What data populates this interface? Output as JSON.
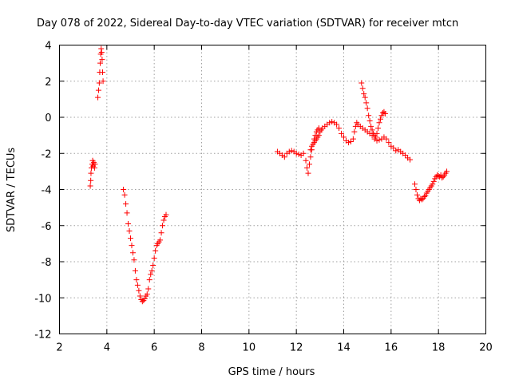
{
  "chart_data": {
    "type": "scatter",
    "title": "Day 078 of 2022, Sidereal Day-to-day VTEC variation (SDTVAR) for receiver mtcn",
    "xlabel": "GPS time / hours",
    "ylabel": "SDTVAR / TECUs",
    "xlim": [
      2,
      20
    ],
    "ylim": [
      -12,
      4
    ],
    "xticks": [
      2,
      4,
      6,
      8,
      10,
      12,
      14,
      16,
      18,
      20
    ],
    "yticks": [
      -12,
      -10,
      -8,
      -6,
      -4,
      -2,
      0,
      2,
      4
    ],
    "xtick_labels": [
      "2",
      "4",
      "6",
      "8",
      "10",
      "12",
      "14",
      "16",
      "18",
      "20"
    ],
    "ytick_labels": [
      "-12",
      "-10",
      "-8",
      "-6",
      "-4",
      "-2",
      "0",
      "2",
      "4"
    ],
    "grid": true,
    "marker": "plus",
    "color": "#ff0000",
    "series": [
      {
        "name": "segment-1",
        "points": [
          [
            3.3,
            -3.8
          ],
          [
            3.32,
            -3.5
          ],
          [
            3.33,
            -3.1
          ],
          [
            3.35,
            -2.8
          ],
          [
            3.38,
            -2.6
          ],
          [
            3.4,
            -2.4
          ],
          [
            3.42,
            -2.7
          ],
          [
            3.45,
            -2.5
          ],
          [
            3.48,
            -2.8
          ],
          [
            3.5,
            -2.6
          ]
        ]
      },
      {
        "name": "segment-2",
        "points": [
          [
            3.62,
            1.1
          ],
          [
            3.65,
            1.5
          ],
          [
            3.68,
            1.9
          ],
          [
            3.7,
            2.5
          ],
          [
            3.72,
            3.0
          ],
          [
            3.74,
            3.5
          ],
          [
            3.76,
            3.8
          ],
          [
            3.78,
            3.6
          ],
          [
            3.8,
            3.2
          ],
          [
            3.82,
            2.5
          ],
          [
            3.84,
            2.0
          ]
        ]
      },
      {
        "name": "segment-3",
        "points": [
          [
            4.7,
            -4.0
          ],
          [
            4.75,
            -4.3
          ],
          [
            4.8,
            -4.8
          ],
          [
            4.85,
            -5.3
          ],
          [
            4.9,
            -5.9
          ],
          [
            4.95,
            -6.3
          ],
          [
            5.0,
            -6.7
          ],
          [
            5.05,
            -7.1
          ],
          [
            5.1,
            -7.5
          ],
          [
            5.15,
            -7.9
          ],
          [
            5.2,
            -8.5
          ],
          [
            5.25,
            -9.0
          ],
          [
            5.3,
            -9.3
          ],
          [
            5.35,
            -9.6
          ],
          [
            5.4,
            -9.9
          ],
          [
            5.45,
            -10.1
          ],
          [
            5.5,
            -10.2
          ],
          [
            5.55,
            -10.15
          ],
          [
            5.6,
            -10.05
          ],
          [
            5.65,
            -9.9
          ],
          [
            5.7,
            -9.8
          ],
          [
            5.75,
            -9.5
          ],
          [
            5.8,
            -9.0
          ],
          [
            5.85,
            -8.7
          ],
          [
            5.9,
            -8.5
          ],
          [
            5.95,
            -8.2
          ],
          [
            6.0,
            -7.8
          ],
          [
            6.05,
            -7.4
          ],
          [
            6.1,
            -7.1
          ],
          [
            6.15,
            -7.0
          ],
          [
            6.2,
            -6.9
          ],
          [
            6.25,
            -6.8
          ],
          [
            6.3,
            -6.4
          ],
          [
            6.35,
            -6.0
          ],
          [
            6.4,
            -5.7
          ],
          [
            6.45,
            -5.5
          ],
          [
            6.5,
            -5.4
          ]
        ]
      },
      {
        "name": "segment-4",
        "points": [
          [
            11.2,
            -1.9
          ],
          [
            11.3,
            -2.0
          ],
          [
            11.4,
            -2.1
          ],
          [
            11.5,
            -2.2
          ],
          [
            11.6,
            -2.0
          ],
          [
            11.7,
            -1.9
          ],
          [
            11.8,
            -1.85
          ],
          [
            11.9,
            -1.9
          ],
          [
            12.0,
            -2.0
          ],
          [
            12.1,
            -2.05
          ],
          [
            12.2,
            -2.1
          ],
          [
            12.3,
            -2.0
          ],
          [
            12.4,
            -2.4
          ],
          [
            12.45,
            -2.8
          ],
          [
            12.5,
            -3.1
          ],
          [
            12.55,
            -2.6
          ],
          [
            12.6,
            -2.2
          ],
          [
            12.65,
            -1.8
          ],
          [
            12.7,
            -1.5
          ],
          [
            12.75,
            -1.2
          ],
          [
            12.8,
            -1.0
          ],
          [
            12.85,
            -0.8
          ],
          [
            12.9,
            -0.7
          ],
          [
            12.95,
            -0.6
          ],
          [
            12.6,
            -1.8
          ],
          [
            12.65,
            -1.6
          ],
          [
            12.7,
            -1.5
          ],
          [
            12.75,
            -1.4
          ],
          [
            12.8,
            -1.3
          ],
          [
            12.85,
            -1.2
          ],
          [
            12.9,
            -1.1
          ],
          [
            12.95,
            -1.0
          ],
          [
            13.0,
            -0.8
          ],
          [
            13.05,
            -0.7
          ],
          [
            13.1,
            -0.6
          ],
          [
            13.2,
            -0.5
          ],
          [
            13.3,
            -0.4
          ],
          [
            13.4,
            -0.3
          ],
          [
            13.5,
            -0.25
          ],
          [
            13.6,
            -0.3
          ],
          [
            13.7,
            -0.4
          ],
          [
            13.8,
            -0.6
          ],
          [
            13.9,
            -0.9
          ],
          [
            14.0,
            -1.1
          ],
          [
            14.1,
            -1.3
          ],
          [
            14.2,
            -1.4
          ],
          [
            14.3,
            -1.35
          ],
          [
            14.4,
            -1.2
          ],
          [
            14.45,
            -0.8
          ],
          [
            14.5,
            -0.5
          ],
          [
            14.55,
            -0.3
          ],
          [
            14.6,
            -0.4
          ],
          [
            14.7,
            -0.5
          ],
          [
            14.8,
            -0.6
          ],
          [
            14.9,
            -0.7
          ],
          [
            15.0,
            -0.8
          ],
          [
            15.1,
            -0.9
          ],
          [
            15.2,
            -1.0
          ],
          [
            15.3,
            -1.2
          ],
          [
            14.75,
            1.9
          ],
          [
            14.8,
            1.6
          ],
          [
            14.85,
            1.3
          ],
          [
            14.9,
            1.1
          ],
          [
            14.95,
            0.8
          ],
          [
            15.0,
            0.5
          ],
          [
            15.05,
            0.1
          ],
          [
            15.1,
            -0.2
          ],
          [
            15.15,
            -0.5
          ],
          [
            15.2,
            -0.7
          ],
          [
            15.25,
            -0.9
          ],
          [
            15.3,
            -1.0
          ],
          [
            15.35,
            -1.1
          ],
          [
            15.4,
            -0.9
          ],
          [
            15.45,
            -0.6
          ],
          [
            15.5,
            -0.3
          ],
          [
            15.55,
            -0.1
          ],
          [
            15.6,
            0.1
          ],
          [
            15.65,
            0.25
          ],
          [
            15.7,
            0.3
          ],
          [
            15.75,
            0.2
          ],
          [
            15.4,
            -1.3
          ],
          [
            15.5,
            -1.25
          ],
          [
            15.6,
            -1.2
          ],
          [
            15.7,
            -1.1
          ],
          [
            15.8,
            -1.2
          ],
          [
            15.9,
            -1.4
          ],
          [
            16.0,
            -1.6
          ],
          [
            16.1,
            -1.7
          ],
          [
            16.2,
            -1.85
          ],
          [
            16.3,
            -1.8
          ],
          [
            16.4,
            -1.9
          ],
          [
            16.5,
            -2.0
          ],
          [
            16.6,
            -2.1
          ],
          [
            16.7,
            -2.25
          ],
          [
            16.8,
            -2.35
          ]
        ]
      },
      {
        "name": "segment-5",
        "points": [
          [
            17.0,
            -3.7
          ],
          [
            17.05,
            -4.0
          ],
          [
            17.1,
            -4.3
          ],
          [
            17.15,
            -4.5
          ],
          [
            17.2,
            -4.6
          ],
          [
            17.25,
            -4.5
          ],
          [
            17.3,
            -4.55
          ],
          [
            17.35,
            -4.5
          ],
          [
            17.4,
            -4.4
          ],
          [
            17.45,
            -4.35
          ],
          [
            17.5,
            -4.2
          ],
          [
            17.55,
            -4.1
          ],
          [
            17.6,
            -4.0
          ],
          [
            17.65,
            -3.9
          ],
          [
            17.7,
            -3.8
          ],
          [
            17.75,
            -3.7
          ],
          [
            17.8,
            -3.55
          ],
          [
            17.85,
            -3.4
          ],
          [
            17.9,
            -3.3
          ],
          [
            17.95,
            -3.2
          ],
          [
            18.0,
            -3.25
          ],
          [
            18.05,
            -3.3
          ],
          [
            18.1,
            -3.2
          ],
          [
            18.15,
            -3.35
          ],
          [
            18.2,
            -3.3
          ],
          [
            18.25,
            -3.2
          ],
          [
            18.3,
            -3.1
          ],
          [
            18.35,
            -3.0
          ]
        ]
      }
    ]
  }
}
